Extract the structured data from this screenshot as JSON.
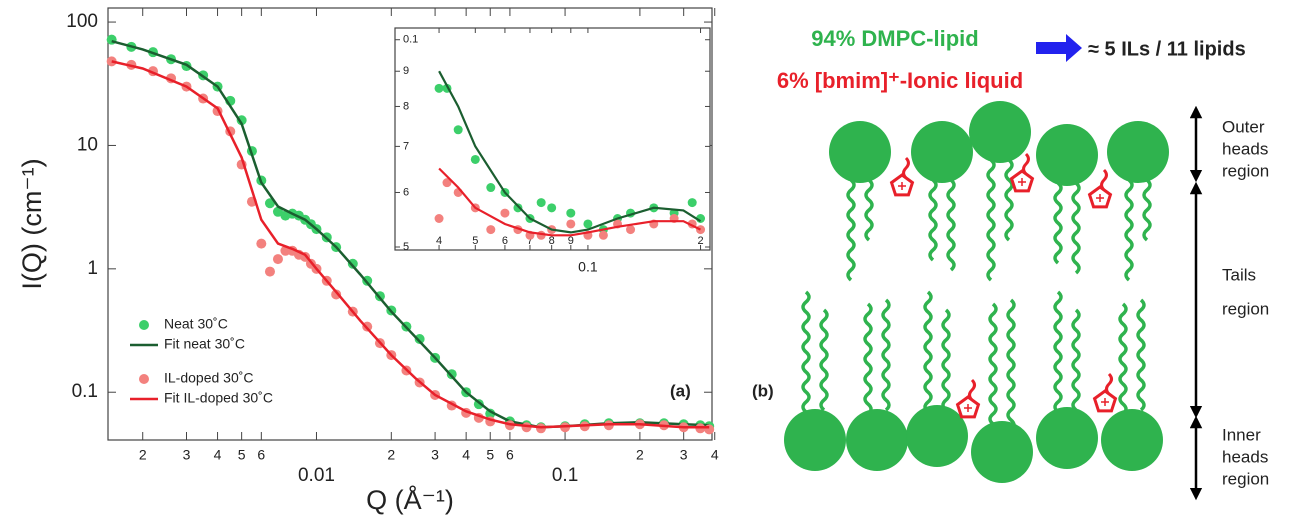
{
  "chart_data": [
    {
      "type": "scatter",
      "xlabel": "Q (Å⁻¹)",
      "ylabel": "I(Q) (cm⁻¹)",
      "annotation": "(a)",
      "xlog": true,
      "ylog": true,
      "xlim": [
        0.00145,
        0.39
      ],
      "ylim": [
        0.041,
        130
      ],
      "xticks": [
        {
          "value": 0.002,
          "label": "2"
        },
        {
          "value": 0.003,
          "label": "3"
        },
        {
          "value": 0.004,
          "label": "4"
        },
        {
          "value": 0.005,
          "label": "5"
        },
        {
          "value": 0.006,
          "label": "6"
        },
        0.01,
        {
          "value": 0.02,
          "label": "2"
        },
        {
          "value": 0.03,
          "label": "3"
        },
        {
          "value": 0.04,
          "label": "4"
        },
        {
          "value": 0.05,
          "label": "5"
        },
        {
          "value": 0.06,
          "label": "6"
        },
        0.1,
        {
          "value": 0.2,
          "label": "2"
        },
        {
          "value": 0.3,
          "label": "3"
        },
        {
          "value": 0.4,
          "label": "4"
        }
      ],
      "yticks": [
        0.1,
        1,
        10,
        100
      ],
      "legend": "lower left",
      "series": [
        {
          "name": "Neat 30˚C",
          "color": "#3ccf6a",
          "style": "markers",
          "x": [
            0.0015,
            0.0018,
            0.0022,
            0.0026,
            0.003,
            0.0035,
            0.004,
            0.0045,
            0.005,
            0.0055,
            0.006,
            0.0065,
            0.007,
            0.0075,
            0.008,
            0.0085,
            0.009,
            0.0095,
            0.01,
            0.011,
            0.012,
            0.014,
            0.016,
            0.018,
            0.02,
            0.023,
            0.026,
            0.03,
            0.035,
            0.04,
            0.045,
            0.05,
            0.06,
            0.07,
            0.08,
            0.1,
            0.12,
            0.15,
            0.2,
            0.25,
            0.3,
            0.35,
            0.38
          ],
          "values": [
            72,
            63,
            57,
            50,
            44,
            37,
            30,
            23,
            16,
            9,
            5.2,
            3.4,
            2.9,
            2.7,
            2.8,
            2.7,
            2.5,
            2.3,
            2.1,
            1.8,
            1.5,
            1.1,
            0.8,
            0.6,
            0.46,
            0.34,
            0.27,
            0.19,
            0.14,
            0.1,
            0.08,
            0.067,
            0.058,
            0.054,
            0.052,
            0.053,
            0.055,
            0.056,
            0.056,
            0.056,
            0.055,
            0.054,
            0.053
          ]
        },
        {
          "name": "Fit neat 30˚C",
          "color": "#1b5e30",
          "style": "line",
          "x": [
            0.0015,
            0.002,
            0.003,
            0.004,
            0.005,
            0.006,
            0.007,
            0.008,
            0.009,
            0.01,
            0.012,
            0.015,
            0.02,
            0.025,
            0.03,
            0.04,
            0.05,
            0.06,
            0.08,
            0.1,
            0.15,
            0.2,
            0.3,
            0.38
          ],
          "values": [
            70,
            60,
            45,
            30,
            15,
            5,
            3.2,
            2.8,
            2.5,
            2.1,
            1.5,
            0.9,
            0.45,
            0.28,
            0.19,
            0.1,
            0.07,
            0.058,
            0.052,
            0.053,
            0.056,
            0.057,
            0.055,
            0.054
          ]
        },
        {
          "name": "IL-doped 30˚C",
          "color": "#f3817e",
          "style": "markers",
          "x": [
            0.0015,
            0.0018,
            0.0022,
            0.0026,
            0.003,
            0.0035,
            0.004,
            0.0045,
            0.005,
            0.0055,
            0.006,
            0.0065,
            0.007,
            0.0075,
            0.008,
            0.0085,
            0.009,
            0.0095,
            0.01,
            0.011,
            0.012,
            0.014,
            0.016,
            0.018,
            0.02,
            0.023,
            0.026,
            0.03,
            0.035,
            0.04,
            0.045,
            0.05,
            0.06,
            0.07,
            0.08,
            0.1,
            0.12,
            0.15,
            0.2,
            0.25,
            0.3,
            0.35,
            0.38
          ],
          "values": [
            48,
            45,
            40,
            35,
            30,
            24,
            19,
            13,
            7,
            3.5,
            1.6,
            0.95,
            1.2,
            1.4,
            1.4,
            1.3,
            1.25,
            1.1,
            1.0,
            0.8,
            0.62,
            0.45,
            0.34,
            0.25,
            0.2,
            0.15,
            0.12,
            0.095,
            0.078,
            0.068,
            0.062,
            0.058,
            0.054,
            0.052,
            0.051,
            0.052,
            0.053,
            0.054,
            0.055,
            0.054,
            0.052,
            0.051,
            0.05
          ]
        },
        {
          "name": "Fit IL-doped 30˚C",
          "color": "#e8202a",
          "style": "line",
          "x": [
            0.0015,
            0.002,
            0.003,
            0.004,
            0.005,
            0.006,
            0.007,
            0.008,
            0.009,
            0.01,
            0.012,
            0.015,
            0.02,
            0.025,
            0.03,
            0.04,
            0.05,
            0.06,
            0.08,
            0.1,
            0.15,
            0.2,
            0.3,
            0.38
          ],
          "values": [
            48,
            42,
            30,
            20,
            8,
            2.5,
            1.6,
            1.45,
            1.3,
            1.0,
            0.65,
            0.38,
            0.2,
            0.13,
            0.095,
            0.07,
            0.06,
            0.055,
            0.052,
            0.053,
            0.055,
            0.055,
            0.052,
            0.052
          ]
        }
      ]
    },
    {
      "type": "scatter",
      "xlog": true,
      "ylog": true,
      "xlim": [
        0.0305,
        0.212
      ],
      "ylim": [
        0.0495,
        0.104
      ],
      "xticks": [
        {
          "value": 0.04,
          "label": "4"
        },
        {
          "value": 0.05,
          "label": "5"
        },
        {
          "value": 0.06,
          "label": "6"
        },
        {
          "value": 0.07,
          "label": "7"
        },
        {
          "value": 0.08,
          "label": "8"
        },
        {
          "value": 0.09,
          "label": "9"
        },
        0.1,
        {
          "value": 0.2,
          "label": "2"
        }
      ],
      "yticks": [
        0.1,
        {
          "value": 0.09,
          "label": "9"
        },
        {
          "value": 0.08,
          "label": "8"
        },
        {
          "value": 0.07,
          "label": "7"
        },
        {
          "value": 0.06,
          "label": "6"
        },
        {
          "value": 0.05,
          "label": "5"
        }
      ],
      "series": [
        {
          "color": "#3ccf6a",
          "style": "markers",
          "x": [
            0.04,
            0.042,
            0.045,
            0.05,
            0.055,
            0.06,
            0.065,
            0.07,
            0.075,
            0.08,
            0.09,
            0.1,
            0.11,
            0.12,
            0.13,
            0.15,
            0.17,
            0.19,
            0.2
          ],
          "values": [
            0.085,
            0.085,
            0.074,
            0.067,
            0.061,
            0.06,
            0.057,
            0.055,
            0.058,
            0.057,
            0.056,
            0.054,
            0.053,
            0.055,
            0.056,
            0.057,
            0.056,
            0.058,
            0.055
          ]
        },
        {
          "color": "#f3817e",
          "style": "markers",
          "x": [
            0.04,
            0.042,
            0.045,
            0.05,
            0.055,
            0.06,
            0.065,
            0.07,
            0.075,
            0.08,
            0.09,
            0.1,
            0.11,
            0.12,
            0.13,
            0.15,
            0.17,
            0.19,
            0.2
          ],
          "values": [
            0.055,
            0.062,
            0.06,
            0.057,
            0.053,
            0.056,
            0.053,
            0.052,
            0.052,
            0.053,
            0.054,
            0.052,
            0.052,
            0.054,
            0.053,
            0.054,
            0.055,
            0.054,
            0.053
          ]
        },
        {
          "color": "#1b5e30",
          "style": "line",
          "x": [
            0.04,
            0.045,
            0.05,
            0.06,
            0.07,
            0.08,
            0.09,
            0.1,
            0.12,
            0.15,
            0.18,
            0.2
          ],
          "values": [
            0.09,
            0.08,
            0.07,
            0.06,
            0.055,
            0.053,
            0.0525,
            0.053,
            0.055,
            0.057,
            0.0565,
            0.0545
          ]
        },
        {
          "color": "#e8202a",
          "style": "line",
          "x": [
            0.04,
            0.045,
            0.05,
            0.06,
            0.07,
            0.08,
            0.09,
            0.1,
            0.12,
            0.15,
            0.18,
            0.2
          ],
          "values": [
            0.065,
            0.061,
            0.057,
            0.054,
            0.0525,
            0.052,
            0.052,
            0.0525,
            0.0535,
            0.0545,
            0.0545,
            0.053
          ]
        }
      ]
    }
  ],
  "diagram": {
    "label": "(b)",
    "composition": [
      "94% DMPC-lipid",
      "6% [bmim]⁺-Ionic liquid"
    ],
    "ratio": "≈ 5 ILs / 11 lipids",
    "regions": [
      [
        "Outer",
        "heads",
        "region"
      ],
      [
        "Tails",
        "region"
      ],
      [
        "Inner",
        "heads",
        "region"
      ]
    ]
  }
}
